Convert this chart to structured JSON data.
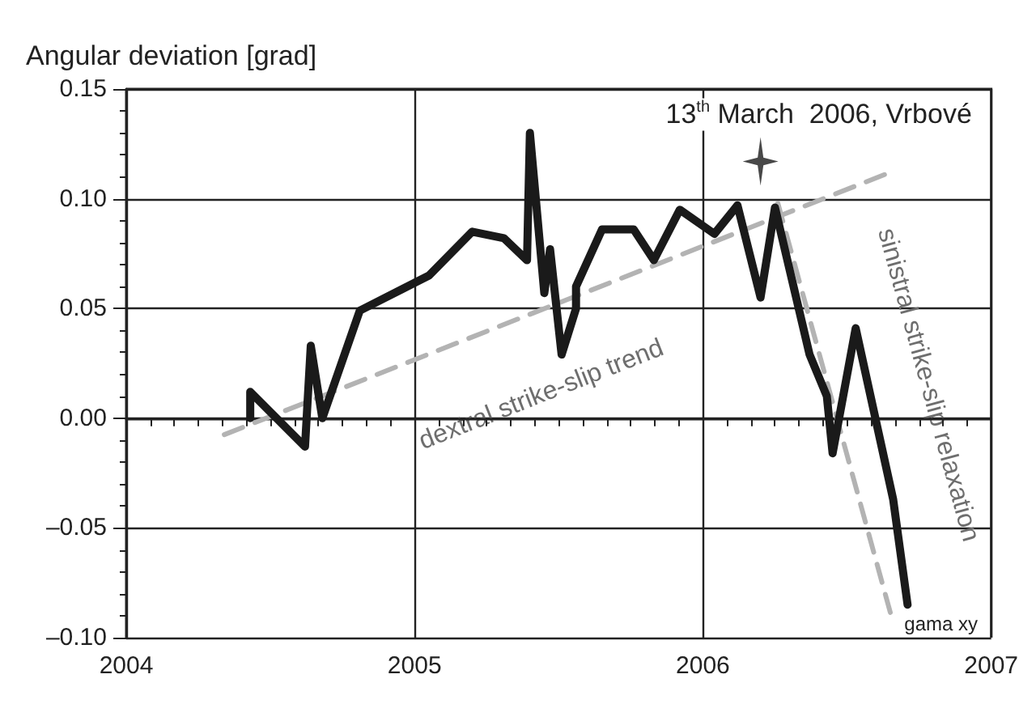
{
  "chart_data": {
    "type": "line",
    "ylabel": "Angular deviation [grad]",
    "xlim": [
      2004,
      2007
    ],
    "xticks": [
      2004,
      2005,
      2006,
      2007
    ],
    "ylim": [
      -0.1,
      0.15
    ],
    "yticks": [
      {
        "value": -0.1,
        "label": "–0.10"
      },
      {
        "value": -0.05,
        "label": "–0.05"
      },
      {
        "value": 0,
        "label": "0.00"
      },
      {
        "value": 0.05,
        "label": "0.05"
      },
      {
        "value": 0.1,
        "label": "0.10"
      },
      {
        "value": 0.15,
        "label": "0.15"
      }
    ],
    "grid": true,
    "marker": "none",
    "series": [
      {
        "name": "gama xy",
        "color": "#1a1a1a",
        "line_style": "solid",
        "x": [
          2004.43,
          2004.43,
          2004.62,
          2004.64,
          2004.68,
          2004.81,
          2004.96,
          2005.05,
          2005.2,
          2005.31,
          2005.39,
          2005.4,
          2005.45,
          2005.47,
          2005.51,
          2005.56,
          2005.56,
          2005.65,
          2005.76,
          2005.83,
          2005.92,
          2006.04,
          2006.12,
          2006.2,
          2006.25,
          2006.37,
          2006.43,
          2006.45,
          2006.53,
          2006.66,
          2006.71
        ],
        "values": [
          0.0,
          0.012,
          -0.013,
          0.033,
          0.0,
          0.049,
          0.059,
          0.065,
          0.085,
          0.082,
          0.072,
          0.13,
          0.057,
          0.077,
          0.029,
          0.05,
          0.06,
          0.086,
          0.086,
          0.072,
          0.095,
          0.084,
          0.097,
          0.055,
          0.096,
          0.029,
          0.01,
          -0.016,
          0.041,
          -0.037,
          -0.085
        ]
      },
      {
        "name": "dextral strike-slip trend",
        "color": "#b3b3b3",
        "line_style": "dashed",
        "x": [
          2004.34,
          2006.63
        ],
        "values": [
          -0.0075,
          0.111
        ]
      },
      {
        "name": "sinistral strike-slip relaxation",
        "color": "#b3b3b3",
        "line_style": "dashed",
        "x": [
          2006.26,
          2006.65
        ],
        "values": [
          0.098,
          -0.0885
        ]
      },
      {
        "type": "scatter",
        "marker": "star",
        "color": "#1a1a1a",
        "x": [
          2006.2
        ],
        "values": [
          0.117
        ]
      }
    ],
    "annotations": [
      {
        "text": "13$^{th}$ March  2006, Vrbové",
        "x": 2006.2,
        "y": 0.117
      }
    ]
  }
}
